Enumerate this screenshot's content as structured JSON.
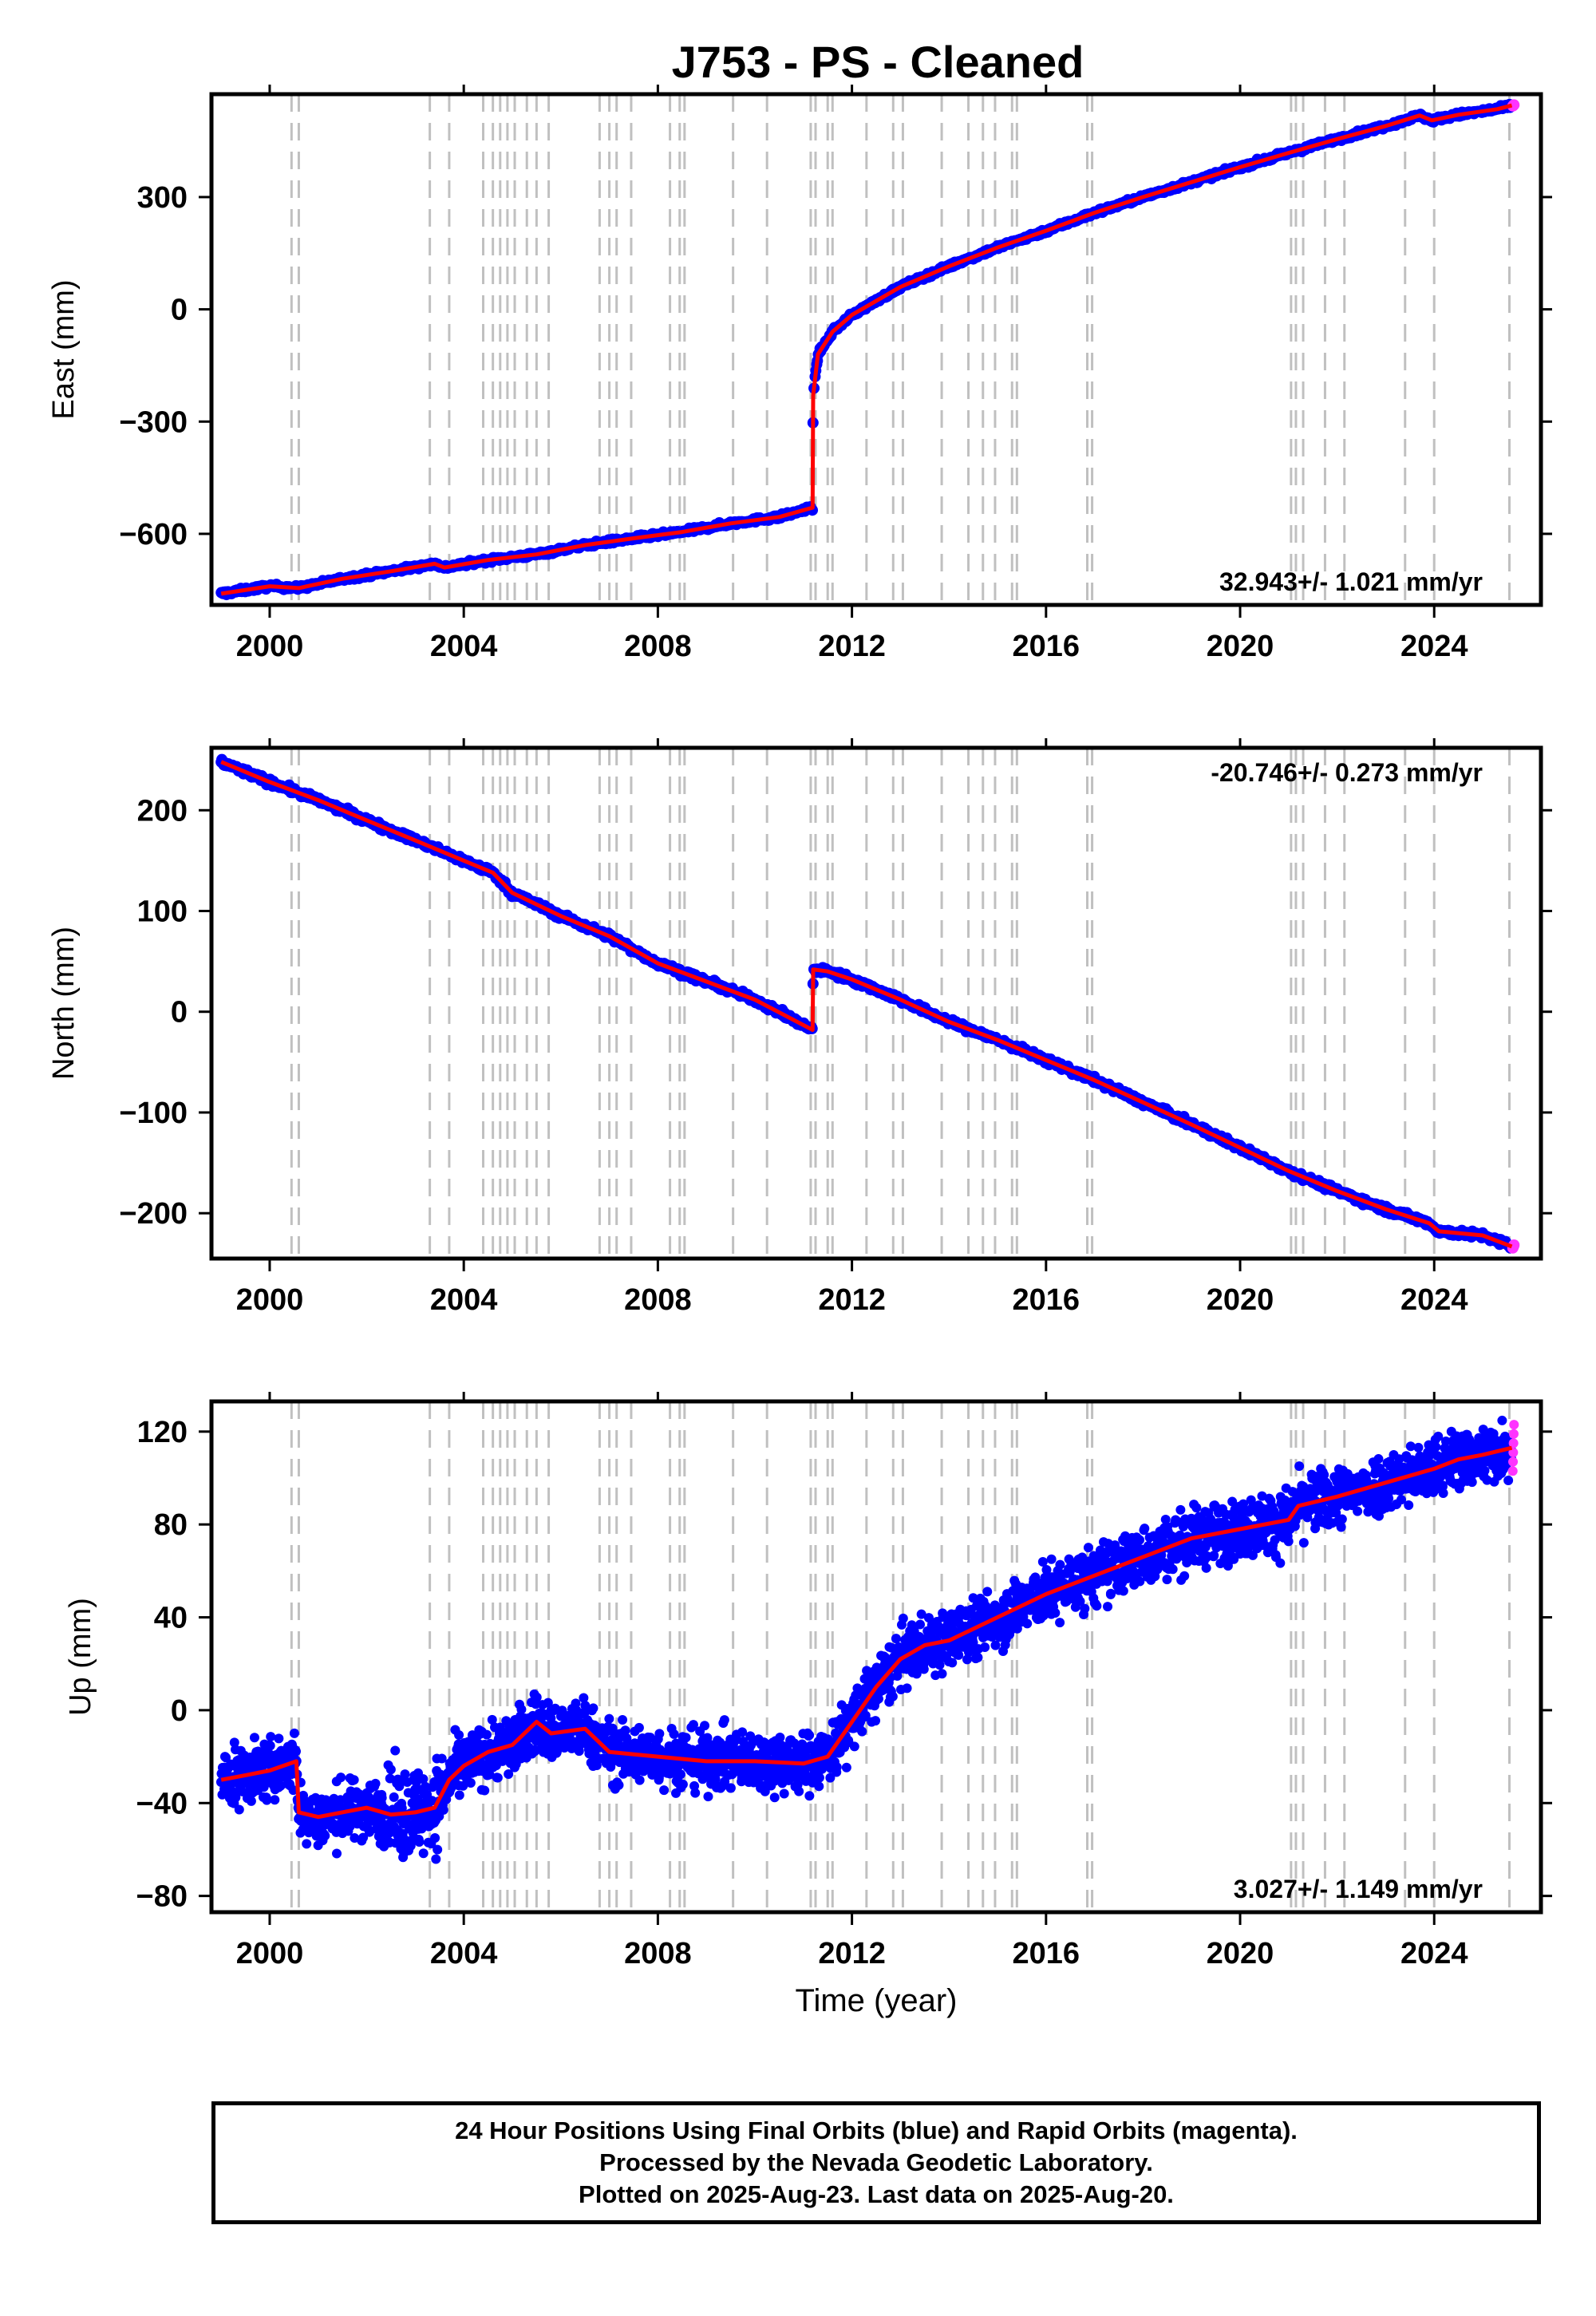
{
  "title": "J753  - PS - Cleaned",
  "xlabel": "Time (year)",
  "x_ticks": [
    2000,
    2004,
    2008,
    2012,
    2016,
    2020,
    2024
  ],
  "colors": {
    "final": "#0000ff",
    "rapid": "#ff33ff",
    "model": "#ff0000",
    "dashes": "#c0c0c0",
    "frame": "#000000"
  },
  "caption": {
    "line1": "24 Hour Positions Using Final Orbits (blue) and Rapid Orbits (magenta).",
    "line2": "Processed by the Nevada Geodetic Laboratory.",
    "line3": "Plotted on 2025-Aug-23. Last data on 2025-Aug-20."
  },
  "chart_data": [
    {
      "type": "scatter",
      "ylabel": "East (mm)",
      "xlim": [
        1998.8,
        2026.2
      ],
      "ylim": [
        -790,
        575
      ],
      "y_ticks": [
        -600,
        -300,
        0,
        300
      ],
      "rate": "32.943+/- 1.021 mm/yr",
      "rate_position": "bottom-right",
      "series": [
        {
          "x": [
            1999.0,
            2000.0,
            2000.6,
            2001.5,
            2002.5,
            2003.4,
            2003.6,
            2004.5,
            2005.5,
            2006.5,
            2007.5,
            2008.5,
            2009.5,
            2010.5,
            2011.19,
            2011.2,
            2011.3,
            2011.6,
            2012.0,
            2013.0,
            2014.0,
            2015.0,
            2016.0,
            2017.0,
            2018.0,
            2019.0,
            2020.0,
            2021.0,
            2022.0,
            2023.0,
            2023.7,
            2023.95,
            2024.5,
            2025.3,
            2025.6
          ],
          "y": [
            -760,
            -740,
            -745,
            -720,
            -700,
            -680,
            -690,
            -670,
            -655,
            -630,
            -612,
            -595,
            -572,
            -555,
            -530,
            -230,
            -120,
            -60,
            -15,
            60,
            115,
            165,
            210,
            258,
            300,
            340,
            380,
            418,
            455,
            490,
            518,
            505,
            520,
            535,
            545
          ]
        }
      ]
    },
    {
      "type": "scatter",
      "ylabel": "North (mm)",
      "xlim": [
        1998.8,
        2026.2
      ],
      "ylim": [
        -245,
        262
      ],
      "y_ticks": [
        -200,
        -100,
        0,
        100,
        200
      ],
      "rate": "-20.746+/- 0.273 mm/yr",
      "rate_position": "top-right",
      "series": [
        {
          "x": [
            1999.0,
            2000.0,
            2001.0,
            2002.0,
            2003.0,
            2004.0,
            2004.6,
            2005.0,
            2006.0,
            2007.0,
            2008.0,
            2009.0,
            2010.0,
            2011.19,
            2011.2,
            2011.5,
            2012.0,
            2013.0,
            2014.0,
            2015.0,
            2016.0,
            2017.0,
            2018.0,
            2019.0,
            2020.0,
            2021.0,
            2022.0,
            2023.0,
            2023.9,
            2024.1,
            2025.0,
            2025.6
          ],
          "y": [
            248,
            228,
            210,
            190,
            170,
            150,
            138,
            118,
            95,
            75,
            48,
            30,
            12,
            -18,
            42,
            40,
            32,
            12,
            -10,
            -28,
            -48,
            -68,
            -90,
            -112,
            -135,
            -158,
            -178,
            -196,
            -210,
            -218,
            -222,
            -233
          ]
        }
      ]
    },
    {
      "type": "scatter",
      "ylabel": "Up (mm)",
      "xlim": [
        1998.8,
        2026.2
      ],
      "ylim": [
        -87,
        133
      ],
      "y_ticks": [
        -80,
        -40,
        0,
        40,
        80,
        120
      ],
      "rate": "3.027+/- 1.149 mm/yr",
      "rate_position": "bottom-right",
      "series": [
        {
          "x": [
            1999.0,
            1999.5,
            2000.0,
            2000.55,
            2000.6,
            2001.0,
            2002.0,
            2002.5,
            2003.0,
            2003.4,
            2003.7,
            2004.0,
            2004.5,
            2005.0,
            2005.5,
            2005.8,
            2006.5,
            2007.0,
            2008.0,
            2009.0,
            2010.0,
            2011.0,
            2011.5,
            2012.0,
            2012.5,
            2013.0,
            2013.5,
            2014.0,
            2015.0,
            2016.0,
            2017.0,
            2018.0,
            2019.0,
            2020.0,
            2021.0,
            2021.2,
            2022.0,
            2023.0,
            2024.0,
            2024.5,
            2025.0,
            2025.6
          ],
          "y": [
            -30,
            -28,
            -26,
            -22,
            -44,
            -46,
            -42,
            -45,
            -44,
            -42,
            -30,
            -24,
            -18,
            -15,
            -5,
            -10,
            -8,
            -18,
            -20,
            -22,
            -22,
            -23,
            -20,
            -5,
            10,
            22,
            28,
            30,
            40,
            50,
            58,
            66,
            74,
            78,
            82,
            88,
            92,
            98,
            104,
            108,
            110,
            113
          ]
        }
      ]
    }
  ]
}
